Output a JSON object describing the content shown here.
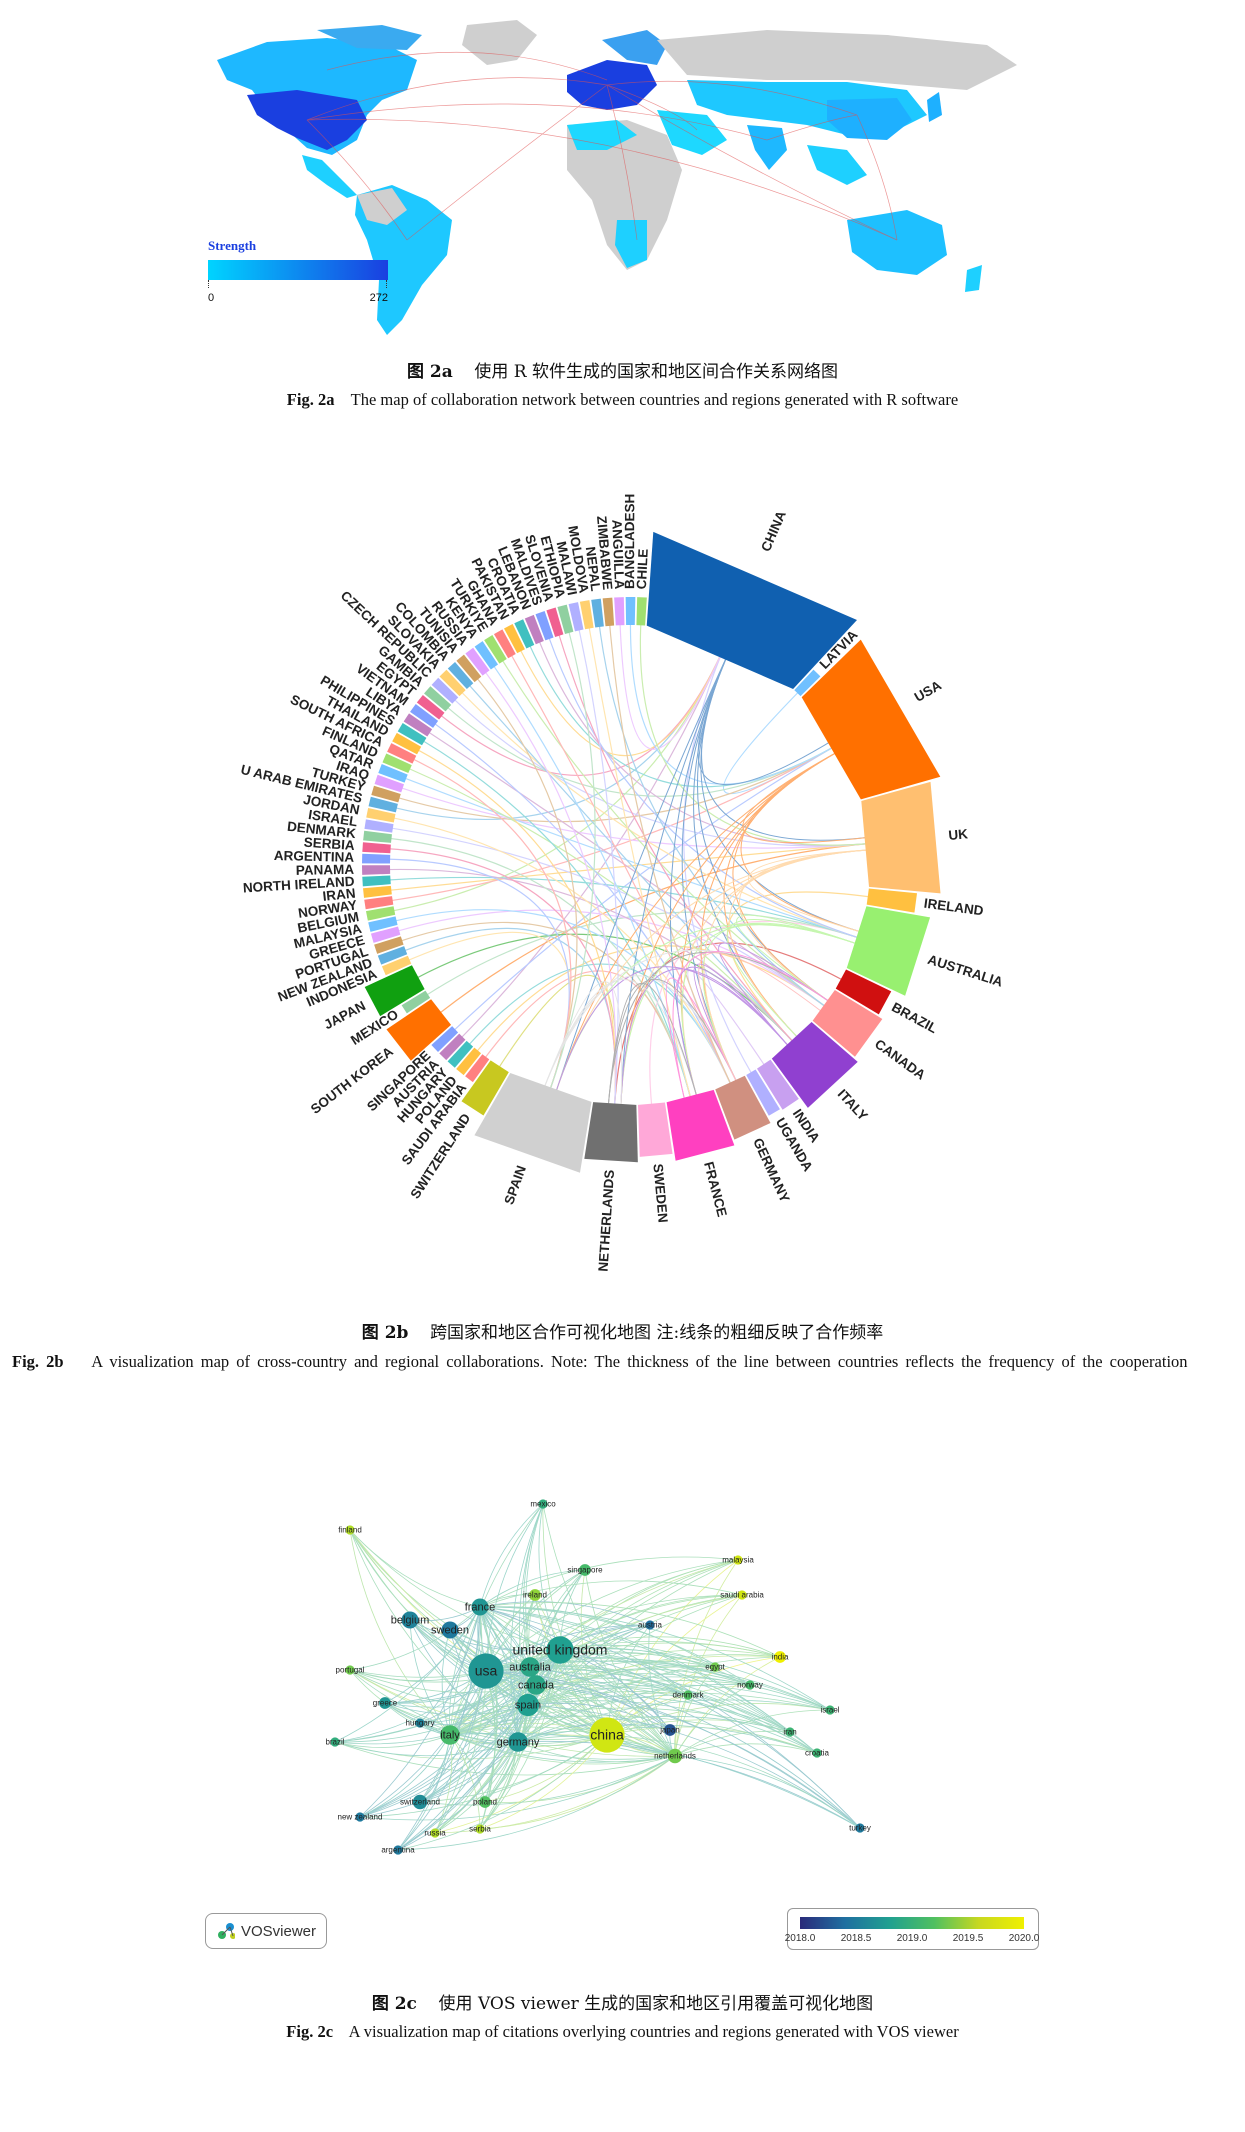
{
  "fig2a": {
    "legend_title": "Strength",
    "legend_min": "0",
    "legend_max": "272",
    "caption_cn_label": "图 2a",
    "caption_cn_text": "使用 R 软件生成的国家和地区间合作关系网络图",
    "caption_en_label": "Fig. 2a",
    "caption_en_text": "The map of collaboration network between countries and regions generated with R software",
    "colors": {
      "low": "#00d4ff",
      "high": "#1a3fe0",
      "ocean": "#ffffff",
      "nodata": "#cfcfcf",
      "link": "#e05050"
    }
  },
  "fig2b": {
    "caption_cn_label": "图 2b",
    "caption_cn_text": "跨国家和地区合作可视化地图 注:线条的粗细反映了合作频率",
    "caption_en_label": "Fig. 2b",
    "caption_en_text": "A visualization map of cross-country and regional collaborations. Note: The thickness of the line between countries reflects the frequency of the cooperation",
    "countries": [
      "CHINA",
      "LATVIA",
      "USA",
      "UK",
      "IRELAND",
      "AUSTRALIA",
      "BRAZIL",
      "CANADA",
      "ITALY",
      "INDIA",
      "UGANDA",
      "GERMANY",
      "FRANCE",
      "SWEDEN",
      "NETHERLANDS",
      "SPAIN",
      "SWITZERLAND",
      "SAUDI ARABIA",
      "POLAND",
      "HUNGARY",
      "AUSTRIA",
      "SINGAPORE",
      "SOUTH KOREA",
      "MEXICO",
      "JAPAN",
      "INDONESIA",
      "NEW ZEALAND",
      "PORTUGAL",
      "GREECE",
      "MALAYSIA",
      "BELGIUM",
      "NORWAY",
      "IRAN",
      "NORTH IRELAND",
      "PANAMA",
      "ARGENTINA",
      "SERBIA",
      "DENMARK",
      "ISRAEL",
      "JORDAN",
      "U ARAB EMIRATES",
      "TURKEY",
      "IRAQ",
      "QATAR",
      "FINLAND",
      "SOUTH AFRICA",
      "THAILAND",
      "PHILIPPINES",
      "LIBYA",
      "VIETNAM",
      "EGYPT",
      "GAMBIA",
      "CZECH REPUBLIC",
      "SLOVAKIA",
      "COLOMBIA",
      "TUNISIA",
      "RUSSIA",
      "KENYA",
      "TURKIYE",
      "GHANA",
      "PAKISTAN",
      "CROATIA",
      "LEBANON",
      "MALDIVES",
      "SLOVENIA",
      "ETHIOPIA",
      "MALAWI",
      "MOLDOVA",
      "NEPAL",
      "ZIMBABWE",
      "ANGUILLA",
      "BANGLADESH",
      "CHILE"
    ],
    "sector_colors": {
      "CHINA": "#1060b0",
      "USA": "#ff7000",
      "UK": "#ffbf70",
      "AUSTRALIA": "#98f070",
      "BRAZIL": "#d01010",
      "CANADA": "#ff9090",
      "ITALY": "#9040d0",
      "INDIA": "#c8a0f0",
      "GERMANY": "#d09080",
      "FRANCE": "#ff40c0",
      "SWEDEN": "#ffa8d8",
      "NETHERLANDS": "#707070",
      "SPAIN": "#d0d0d0",
      "SWITZERLAND": "#c8c820",
      "SOUTH KOREA": "#ff7000",
      "JAPAN": "#10a010"
    }
  },
  "fig2c": {
    "caption_cn_label": "图 2c",
    "caption_cn_text": "使用 VOS viewer 生成的国家和地区引用覆盖可视化地图",
    "caption_en_label": "Fig. 2c",
    "caption_en_text": "A visualization map of citations overlying countries and regions generated with VOS viewer",
    "badge": "VOSviewer",
    "scale_ticks": [
      "2018.0",
      "2018.5",
      "2019.0",
      "2019.5",
      "2020.0"
    ],
    "nodes": [
      {
        "label": "mexico",
        "year": 2019.2,
        "size": 2
      },
      {
        "label": "finland",
        "year": 2019.8,
        "size": 2
      },
      {
        "label": "malaysia",
        "year": 2019.9,
        "size": 2
      },
      {
        "label": "singapore",
        "year": 2019.4,
        "size": 3
      },
      {
        "label": "saudi arabia",
        "year": 2019.9,
        "size": 2
      },
      {
        "label": "ireland",
        "year": 2019.7,
        "size": 3
      },
      {
        "label": "france",
        "year": 2018.9,
        "size": 5
      },
      {
        "label": "belgium",
        "year": 2018.7,
        "size": 5
      },
      {
        "label": "sweden",
        "year": 2018.6,
        "size": 5
      },
      {
        "label": "austria",
        "year": 2018.5,
        "size": 2
      },
      {
        "label": "united kingdom",
        "year": 2019.0,
        "size": 9
      },
      {
        "label": "india",
        "year": 2020.0,
        "size": 3
      },
      {
        "label": "usa",
        "year": 2018.9,
        "size": 12
      },
      {
        "label": "australia",
        "year": 2019.1,
        "size": 6
      },
      {
        "label": "egypt",
        "year": 2019.6,
        "size": 2
      },
      {
        "label": "portugal",
        "year": 2019.6,
        "size": 2
      },
      {
        "label": "canada",
        "year": 2019.1,
        "size": 6
      },
      {
        "label": "norway",
        "year": 2019.4,
        "size": 2
      },
      {
        "label": "denmark",
        "year": 2019.5,
        "size": 2
      },
      {
        "label": "greece",
        "year": 2018.9,
        "size": 3
      },
      {
        "label": "spain",
        "year": 2019.0,
        "size": 7
      },
      {
        "label": "israel",
        "year": 2019.3,
        "size": 2
      },
      {
        "label": "hungary",
        "year": 2018.7,
        "size": 2
      },
      {
        "label": "china",
        "year": 2019.9,
        "size": 12
      },
      {
        "label": "japan",
        "year": 2018.3,
        "size": 3
      },
      {
        "label": "italy",
        "year": 2019.4,
        "size": 6
      },
      {
        "label": "germany",
        "year": 2018.9,
        "size": 6
      },
      {
        "label": "iran",
        "year": 2019.3,
        "size": 2
      },
      {
        "label": "brazil",
        "year": 2019.2,
        "size": 2
      },
      {
        "label": "netherlands",
        "year": 2019.6,
        "size": 4
      },
      {
        "label": "croatia",
        "year": 2019.3,
        "size": 2
      },
      {
        "label": "switzerland",
        "year": 2018.8,
        "size": 4
      },
      {
        "label": "poland",
        "year": 2019.5,
        "size": 3
      },
      {
        "label": "new zealand",
        "year": 2018.6,
        "size": 2
      },
      {
        "label": "russia",
        "year": 2019.8,
        "size": 2
      },
      {
        "label": "serbia",
        "year": 2019.8,
        "size": 2
      },
      {
        "label": "turkey",
        "year": 2018.6,
        "size": 2
      },
      {
        "label": "argentina",
        "year": 2018.6,
        "size": 2
      }
    ]
  }
}
